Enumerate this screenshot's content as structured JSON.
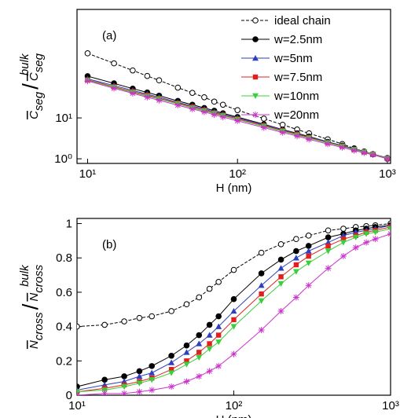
{
  "chart_data": [
    {
      "type": "line",
      "panel_label": "(a)",
      "xlabel": "H (nm)",
      "ylabel": {
        "main": "C",
        "sub": "seg",
        "sep": "/",
        "ref_main": "C",
        "ref_sub": "seg",
        "ref_sup": "bulk"
      },
      "xscale": "log",
      "yscale": "log",
      "xlim": [
        8.5,
        1050
      ],
      "ylim": [
        0.77,
        4500
      ],
      "xticks": [
        {
          "value": 10,
          "label": "10¹"
        },
        {
          "value": 100,
          "label": "10²"
        },
        {
          "value": 1000,
          "label": "10³"
        }
      ],
      "yticks": [
        {
          "value": 1,
          "label": "10⁰"
        },
        {
          "value": 10,
          "label": "10¹"
        }
      ],
      "legend": "upper right",
      "x": [
        10,
        15,
        20,
        25,
        30,
        40,
        50,
        60,
        70,
        80,
        100,
        150,
        200,
        250,
        300,
        400,
        500,
        600,
        700,
        800,
        1000
      ],
      "series": [
        {
          "name": "ideal chain",
          "color": "#000000",
          "marker": "open-circle",
          "dash": true,
          "values": [
            380,
            216,
            145,
            106,
            83,
            55,
            41,
            32,
            25,
            21,
            15.5,
            9.6,
            6.8,
            5.2,
            4.2,
            3.0,
            2.3,
            1.8,
            1.5,
            1.3,
            1.0
          ]
        },
        {
          "name": "w=2.5nm",
          "color": "#000000",
          "marker": "circle",
          "values": [
            105,
            70,
            52,
            42,
            35,
            26,
            21,
            17.5,
            15,
            13,
            10.5,
            7,
            5.2,
            4.2,
            3.5,
            2.6,
            2.1,
            1.75,
            1.5,
            1.3,
            1.05
          ]
        },
        {
          "name": "w=5nm",
          "color": "#2b3fbf",
          "marker": "triangle-up",
          "values": [
            90,
            62,
            47,
            38,
            32,
            24,
            19.5,
            16.5,
            14,
            12.3,
            10,
            6.8,
            5.1,
            4.1,
            3.4,
            2.6,
            2.1,
            1.75,
            1.5,
            1.3,
            1.05
          ]
        },
        {
          "name": "w=7.5nm",
          "color": "#e0201f",
          "marker": "square",
          "values": [
            85,
            58,
            44,
            36,
            30,
            23,
            18.5,
            15.5,
            13.3,
            11.7,
            9.5,
            6.5,
            4.9,
            4.0,
            3.3,
            2.5,
            2.05,
            1.7,
            1.48,
            1.3,
            1.03
          ]
        },
        {
          "name": "w=10nm",
          "color": "#3ccf3c",
          "marker": "triangle-down",
          "values": [
            82,
            56,
            42,
            34,
            29,
            22,
            17.5,
            14.8,
            12.8,
            11.2,
            9.1,
            6.2,
            4.7,
            3.8,
            3.2,
            2.45,
            2.0,
            1.68,
            1.46,
            1.28,
            1.02
          ]
        },
        {
          "name": "w=20nm",
          "color": "#cc33cc",
          "marker": "plus",
          "values": [
            80,
            53,
            40,
            32,
            27,
            20.5,
            16.5,
            14,
            12,
            10.5,
            8.5,
            5.8,
            4.4,
            3.6,
            3.0,
            2.3,
            1.9,
            1.6,
            1.4,
            1.25,
            1.0
          ]
        }
      ]
    },
    {
      "type": "line",
      "panel_label": "(b)",
      "xlabel": "H (nm)",
      "ylabel": {
        "main": "N",
        "sub": "cross",
        "sep": "/",
        "ref_main": "N",
        "ref_sub": "cross",
        "ref_sup": "bulk"
      },
      "xscale": "log",
      "xlim": [
        10,
        1000
      ],
      "ylim": [
        0,
        1.03
      ],
      "xticks": [
        {
          "value": 10,
          "label": "10¹"
        },
        {
          "value": 100,
          "label": "10²"
        },
        {
          "value": 1000,
          "label": "10³"
        }
      ],
      "yticks": [
        0,
        0.2,
        0.4,
        0.6,
        0.8,
        1
      ],
      "x": [
        10,
        15,
        20,
        25,
        30,
        40,
        50,
        60,
        70,
        80,
        100,
        150,
        200,
        250,
        300,
        400,
        500,
        600,
        700,
        800,
        1000
      ],
      "series": [
        {
          "name": "ideal chain",
          "color": "#000000",
          "marker": "open-circle",
          "dash": true,
          "values": [
            0.4,
            0.41,
            0.43,
            0.45,
            0.46,
            0.49,
            0.53,
            0.57,
            0.62,
            0.66,
            0.73,
            0.83,
            0.88,
            0.91,
            0.93,
            0.96,
            0.97,
            0.98,
            0.985,
            0.99,
            1.0
          ]
        },
        {
          "name": "w=2.5nm",
          "color": "#000000",
          "marker": "circle",
          "values": [
            0.05,
            0.09,
            0.11,
            0.14,
            0.17,
            0.23,
            0.29,
            0.35,
            0.41,
            0.46,
            0.56,
            0.71,
            0.79,
            0.84,
            0.87,
            0.92,
            0.94,
            0.96,
            0.97,
            0.98,
            0.99
          ]
        },
        {
          "name": "w=5nm",
          "color": "#2b3fbf",
          "marker": "triangle-up",
          "values": [
            0.03,
            0.06,
            0.08,
            0.11,
            0.13,
            0.19,
            0.25,
            0.3,
            0.35,
            0.4,
            0.49,
            0.64,
            0.74,
            0.8,
            0.84,
            0.89,
            0.93,
            0.95,
            0.96,
            0.97,
            0.99
          ]
        },
        {
          "name": "w=7.5nm",
          "color": "#e0201f",
          "marker": "square",
          "values": [
            0.02,
            0.04,
            0.06,
            0.08,
            0.1,
            0.15,
            0.2,
            0.25,
            0.3,
            0.35,
            0.44,
            0.59,
            0.69,
            0.76,
            0.81,
            0.87,
            0.91,
            0.93,
            0.95,
            0.96,
            0.98
          ]
        },
        {
          "name": "w=10nm",
          "color": "#3ccf3c",
          "marker": "triangle-down",
          "values": [
            0.02,
            0.03,
            0.05,
            0.07,
            0.09,
            0.13,
            0.18,
            0.22,
            0.27,
            0.31,
            0.4,
            0.55,
            0.65,
            0.72,
            0.77,
            0.84,
            0.89,
            0.92,
            0.94,
            0.95,
            0.97
          ]
        },
        {
          "name": "w=20nm",
          "color": "#cc33cc",
          "marker": "plus",
          "values": [
            0.0,
            0.01,
            0.01,
            0.02,
            0.03,
            0.05,
            0.08,
            0.11,
            0.14,
            0.17,
            0.24,
            0.38,
            0.49,
            0.57,
            0.64,
            0.74,
            0.81,
            0.86,
            0.89,
            0.91,
            0.94
          ]
        }
      ]
    }
  ]
}
